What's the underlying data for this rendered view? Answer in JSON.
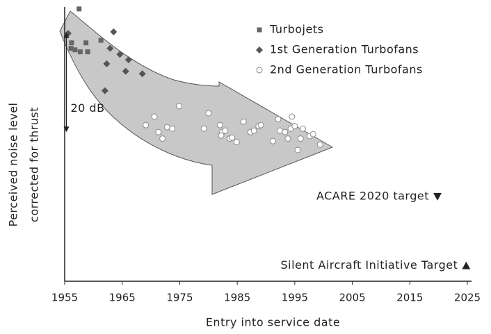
{
  "chart_data": {
    "type": "scatter",
    "xlabel": "Entry into service date",
    "ylabel": [
      "Perceived noise level",
      "corrected for thrust"
    ],
    "xlim": [
      1955,
      2025
    ],
    "xticks": [
      1955,
      1965,
      1975,
      1985,
      1995,
      2005,
      2015,
      2025
    ],
    "ylim": [
      0,
      55
    ],
    "series": [
      {
        "name": "Turbojets",
        "marker": "square",
        "color": "#666666",
        "x": [
          1957.5,
          1956.2,
          1956.1,
          1956.8,
          1957.7,
          1958.7,
          1959.0,
          1961.3
        ],
        "values": [
          54.6,
          47.8,
          46.7,
          46.4,
          46.0,
          47.8,
          46.0,
          48.3
        ]
      },
      {
        "name": "1st Generation Turbofans",
        "marker": "diamond",
        "color": "#555555",
        "x": [
          1955.6,
          1963.5,
          1962.9,
          1964.6,
          1966.1,
          1962.3,
          1965.6,
          1968.5,
          1962.0
        ],
        "values": [
          49.7,
          50.0,
          46.7,
          45.5,
          44.4,
          43.6,
          42.1,
          41.6,
          38.2
        ]
      },
      {
        "name": "2nd Generation Turbofans",
        "marker": "circle",
        "color": "#ffffff",
        "x": [
          1970.6,
          1969.1,
          1971.3,
          1972.0,
          1972.8,
          1973.7,
          1974.9,
          1979.2,
          1980.0,
          1982.0,
          1982.4,
          1982.2,
          1982.9,
          1983.7,
          1984.1,
          1984.9,
          1986.1,
          1987.3,
          1987.9,
          1988.7,
          1989.1,
          1991.2,
          1992.1,
          1992.4,
          1993.3,
          1993.8,
          1994.3,
          1994.5,
          1995.0,
          1995.5,
          1996.0,
          1996.4,
          1997.6,
          1998.2,
          1999.4
        ],
        "values": [
          33.0,
          31.3,
          29.9,
          28.6,
          30.9,
          30.6,
          35.1,
          30.6,
          33.7,
          31.3,
          29.9,
          29.2,
          30.2,
          28.6,
          28.8,
          27.9,
          32.0,
          29.9,
          30.2,
          31.1,
          31.3,
          28.1,
          32.5,
          30.2,
          29.9,
          28.6,
          30.6,
          33.0,
          31.1,
          26.3,
          28.6,
          30.6,
          29.1,
          29.5,
          27.4
        ]
      }
    ],
    "targets": [
      {
        "text": "ACARE 2020 target",
        "marker": "triangle-down",
        "x": 2019.8,
        "y": 17.0
      },
      {
        "text": "Silent Aircraft Initiative Target",
        "marker": "triangle-up",
        "x": 2024.8,
        "y": 3.1
      }
    ],
    "span": {
      "text": "20 dB",
      "x": 1955.3,
      "y": [
        29.9,
        49.9
      ]
    }
  }
}
